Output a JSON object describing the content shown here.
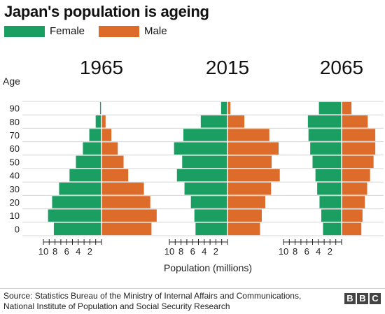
{
  "title": "Japan's population is ageing",
  "legend": [
    {
      "name": "Female",
      "color": "#1b9e62"
    },
    {
      "name": "Male",
      "color": "#dd6b2a"
    }
  ],
  "y_axis_label": "Age",
  "x_axis_label": "Population (millions)",
  "source": "Source: Statistics Bureau of the Ministry of Internal Affairs and Communications, National Institute of Population and Social Security Research",
  "logo_text": "BBC",
  "chart_data": {
    "type": "bar",
    "subtype": "population-pyramid",
    "title": "Japan's population is ageing",
    "xlabel": "Population (millions)",
    "ylabel": "Age",
    "age_groups": [
      0,
      10,
      20,
      30,
      40,
      50,
      60,
      70,
      80,
      90
    ],
    "y_ticks": [
      "0",
      "10",
      "20",
      "30",
      "40",
      "50",
      "60",
      "70",
      "80",
      "90"
    ],
    "x_ticks": [
      "10",
      "8",
      "6",
      "4",
      "2"
    ],
    "xlim": [
      0,
      10.5
    ],
    "panels": [
      {
        "label": "1965",
        "series": [
          {
            "name": "Female",
            "values": [
              8.2,
              9.2,
              8.5,
              7.3,
              5.5,
              4.4,
              3.2,
              2.1,
              1.0,
              0.25
            ]
          },
          {
            "name": "Male",
            "values": [
              8.6,
              9.5,
              8.4,
              7.3,
              4.6,
              3.8,
              2.8,
              1.7,
              0.7,
              0.05
            ]
          }
        ]
      },
      {
        "label": "2015",
        "series": [
          {
            "name": "Female",
            "values": [
              5.5,
              5.7,
              6.3,
              7.4,
              8.7,
              7.8,
              9.2,
              7.6,
              4.6,
              1.1
            ]
          },
          {
            "name": "Male",
            "values": [
              5.6,
              5.9,
              6.5,
              7.5,
              9.0,
              7.6,
              8.8,
              7.2,
              2.9,
              0.5
            ]
          }
        ]
      },
      {
        "label": "2065",
        "series": [
          {
            "name": "Female",
            "values": [
              3.2,
              3.5,
              3.8,
              4.2,
              4.5,
              5.0,
              5.4,
              5.7,
              5.8,
              3.9
            ]
          },
          {
            "name": "Male",
            "values": [
              3.4,
              3.6,
              4.0,
              4.4,
              4.9,
              5.5,
              5.8,
              5.8,
              4.5,
              1.7
            ]
          }
        ]
      }
    ]
  }
}
